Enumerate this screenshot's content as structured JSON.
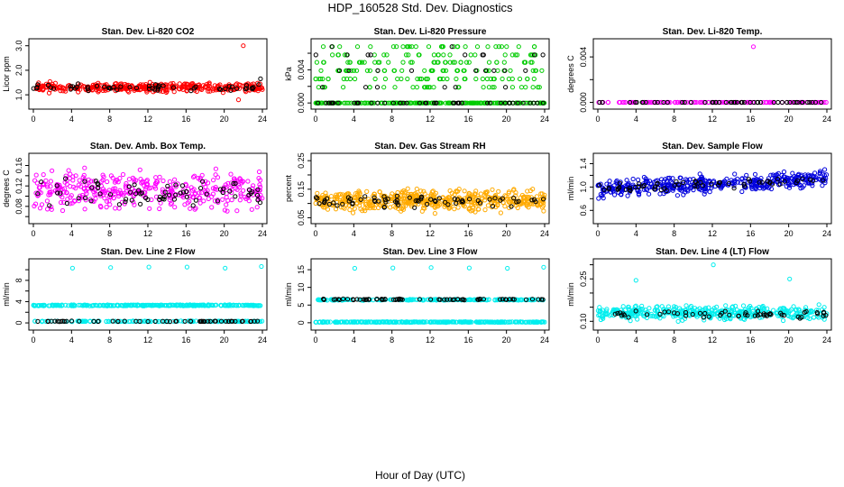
{
  "figure": {
    "title": "HDP_160528  Std. Dev. Diagnostics",
    "xlabel": "Hour of Day (UTC)"
  },
  "chart_data": [
    {
      "type": "scatter",
      "title": "Stan. Dev. Li-820 CO2",
      "ylabel": "Licor ppm",
      "xlim": [
        0,
        24
      ],
      "xticks": [
        0,
        4,
        8,
        12,
        16,
        20,
        24
      ],
      "ylim": [
        0.6,
        3.1
      ],
      "yticks": [
        1.0,
        2.0,
        3.0
      ],
      "ytick_labels": [
        "1.0",
        "2.0",
        "3.0"
      ],
      "series": [
        {
          "color": "#ff0000",
          "y_center": 1.3,
          "y_spread": 0.25,
          "count": 380,
          "seed": 11,
          "extra_points": [
            {
              "x": 22.0,
              "y": 3.0
            },
            {
              "x": 21.5,
              "y": 0.8
            }
          ]
        },
        {
          "color": "#000000",
          "y_center": 1.3,
          "y_spread": 0.2,
          "count": 55,
          "seed": 12,
          "extra_points": [
            {
              "x": 23.8,
              "y": 1.65
            }
          ]
        }
      ]
    },
    {
      "type": "scatter",
      "title": "Stan. Dev. Li-820 Pressure",
      "ylabel": "kPa",
      "xlim": [
        0,
        24
      ],
      "xticks": [
        0,
        4,
        8,
        12,
        16,
        20,
        24
      ],
      "ylim": [
        -0.0002,
        0.0072
      ],
      "yticks": [
        0.0,
        0.002,
        0.004,
        0.006
      ],
      "ytick_labels": [
        "0.000",
        "",
        "0.004",
        ""
      ],
      "series": [
        {
          "color": "#00cc00",
          "levels": [
            0.0,
            0.0019,
            0.0029,
            0.0039,
            0.0049,
            0.0058,
            0.0068
          ],
          "level_weights": [
            0.5,
            0.07,
            0.09,
            0.1,
            0.09,
            0.08,
            0.07
          ],
          "count": 420,
          "seed": 21
        },
        {
          "color": "#000000",
          "levels": [
            0.0,
            0.0019,
            0.0039,
            0.0058,
            0.0068
          ],
          "level_weights": [
            0.7,
            0.07,
            0.08,
            0.08,
            0.07
          ],
          "count": 70,
          "seed": 22
        }
      ]
    },
    {
      "type": "scatter",
      "title": "Stan. Dev. Li-820 Temp.",
      "ylabel": "degrees C",
      "xlim": [
        0,
        24
      ],
      "xticks": [
        0,
        4,
        8,
        12,
        16,
        20,
        24
      ],
      "ylim": [
        -0.0002,
        0.0052
      ],
      "yticks": [
        0.0,
        0.002,
        0.004
      ],
      "ytick_labels": [
        "0.000",
        "",
        "0.004"
      ],
      "series": [
        {
          "color": "#ff00ff",
          "y_center": 0.0,
          "y_spread": 0.0,
          "count": 140,
          "seed": 31,
          "extra_points": [
            {
              "x": 16.3,
              "y": 0.0049
            }
          ]
        },
        {
          "color": "#000000",
          "y_center": 0.0,
          "y_spread": 0.0,
          "count": 50,
          "seed": 32
        }
      ]
    },
    {
      "type": "scatter",
      "title": "Stan. Dev. Amb. Box Temp.",
      "ylabel": "degrees C",
      "xlim": [
        0,
        24
      ],
      "xticks": [
        0,
        4,
        8,
        12,
        16,
        20,
        24
      ],
      "ylim": [
        0.055,
        0.175
      ],
      "yticks": [
        0.06,
        0.08,
        0.1,
        0.12,
        0.14,
        0.16
      ],
      "ytick_labels": [
        "",
        "0.08",
        "",
        "0.12",
        "",
        "0.16"
      ],
      "series": [
        {
          "color": "#ff00ff",
          "y_center": 0.11,
          "y_spread": 0.05,
          "count": 380,
          "seed": 41
        },
        {
          "color": "#000000",
          "y_center": 0.105,
          "y_spread": 0.035,
          "count": 70,
          "seed": 42
        }
      ]
    },
    {
      "type": "scatter",
      "title": "Stan. Dev. Gas Stream RH",
      "ylabel": "percent",
      "xlim": [
        0,
        24
      ],
      "xticks": [
        0,
        4,
        8,
        12,
        16,
        20,
        24
      ],
      "ylim": [
        0.045,
        0.26
      ],
      "yticks": [
        0.05,
        0.1,
        0.15,
        0.2,
        0.25
      ],
      "ytick_labels": [
        "0.05",
        "",
        "0.15",
        "",
        "0.25"
      ],
      "series": [
        {
          "color": "#ffaa00",
          "y_center": 0.11,
          "y_spread": 0.05,
          "count": 520,
          "seed": 51
        },
        {
          "color": "#000000",
          "y_center": 0.11,
          "y_spread": 0.03,
          "count": 70,
          "seed": 52
        }
      ]
    },
    {
      "type": "scatter",
      "title": "Stan. Dev. Sample Flow",
      "ylabel": "ml/min",
      "xlim": [
        0,
        24
      ],
      "xticks": [
        0,
        4,
        8,
        12,
        16,
        20,
        24
      ],
      "ylim": [
        0.45,
        1.5
      ],
      "yticks": [
        0.6,
        0.8,
        1.0,
        1.2,
        1.4
      ],
      "ytick_labels": [
        "0.6",
        "",
        "1.0",
        "",
        "1.4"
      ],
      "series": [
        {
          "color": "#0000dd",
          "y_center": 1.05,
          "y_spread": 0.2,
          "count": 430,
          "seed": 61,
          "trend": 0.2
        },
        {
          "color": "#000000",
          "y_center": 1.05,
          "y_spread": 0.12,
          "count": 60,
          "seed": 62,
          "trend": 0.15
        }
      ]
    },
    {
      "type": "scatter",
      "title": "Stan. Dev. Line 2 Flow",
      "ylabel": "ml/min",
      "xlim": [
        0,
        24
      ],
      "xticks": [
        0,
        4,
        8,
        12,
        16,
        20,
        24
      ],
      "ylim": [
        -0.5,
        11.2
      ],
      "yticks": [
        0,
        2,
        4,
        6,
        8,
        10
      ],
      "ytick_labels": [
        "0",
        "",
        "4",
        "",
        "8",
        ""
      ],
      "series": [
        {
          "color": "#00eeee",
          "y_center": 3.3,
          "y_spread": 0.15,
          "count": 300,
          "seed": 71,
          "extra_points": [
            {
              "x": 4.1,
              "y": 10.3
            },
            {
              "x": 8.1,
              "y": 10.4
            },
            {
              "x": 12.1,
              "y": 10.5
            },
            {
              "x": 16.1,
              "y": 10.5
            },
            {
              "x": 20.1,
              "y": 10.3
            },
            {
              "x": 23.9,
              "y": 10.6
            }
          ]
        },
        {
          "color": "#00eeee",
          "y_center": 0.3,
          "y_spread": 0.1,
          "count": 150,
          "seed": 73
        },
        {
          "color": "#000000",
          "y_center": 0.3,
          "y_spread": 0.08,
          "count": 55,
          "seed": 72
        }
      ]
    },
    {
      "type": "scatter",
      "title": "Stan. Dev. Line 3 Flow",
      "ylabel": "ml/min",
      "xlim": [
        0,
        24
      ],
      "xticks": [
        0,
        4,
        8,
        12,
        16,
        20,
        24
      ],
      "ylim": [
        -0.8,
        16.8
      ],
      "yticks": [
        0,
        5,
        10,
        15
      ],
      "ytick_labels": [
        "0",
        "5",
        "10",
        "15"
      ],
      "series": [
        {
          "color": "#00eeee",
          "y_center": 0.2,
          "y_spread": 0.15,
          "count": 300,
          "seed": 81,
          "extra_points": [
            {
              "x": 4.1,
              "y": 15.4
            },
            {
              "x": 8.1,
              "y": 15.5
            },
            {
              "x": 12.1,
              "y": 15.6
            },
            {
              "x": 16.1,
              "y": 15.5
            },
            {
              "x": 20.1,
              "y": 15.4
            },
            {
              "x": 23.9,
              "y": 15.7
            }
          ]
        },
        {
          "color": "#00eeee",
          "y_center": 6.5,
          "y_spread": 0.2,
          "count": 200,
          "seed": 83
        },
        {
          "color": "#000000",
          "y_center": 6.6,
          "y_spread": 0.2,
          "count": 65,
          "seed": 82
        }
      ]
    },
    {
      "type": "scatter",
      "title": "Stan. Dev. Line 4 (LT) Flow",
      "ylabel": "ml/min",
      "xlim": [
        0,
        24
      ],
      "xticks": [
        0,
        4,
        8,
        12,
        16,
        20,
        24
      ],
      "ylim": [
        0.085,
        0.305
      ],
      "yticks": [
        0.1,
        0.15,
        0.2,
        0.25,
        0.3
      ],
      "ytick_labels": [
        "0.10",
        "",
        "",
        "0.25",
        ""
      ],
      "series": [
        {
          "color": "#00eeee",
          "y_center": 0.13,
          "y_spread": 0.035,
          "count": 420,
          "seed": 91,
          "extra_points": [
            {
              "x": 4.0,
              "y": 0.245
            },
            {
              "x": 12.1,
              "y": 0.3
            },
            {
              "x": 20.1,
              "y": 0.25
            }
          ]
        },
        {
          "color": "#000000",
          "y_center": 0.125,
          "y_spread": 0.02,
          "count": 55,
          "seed": 92
        }
      ]
    }
  ]
}
